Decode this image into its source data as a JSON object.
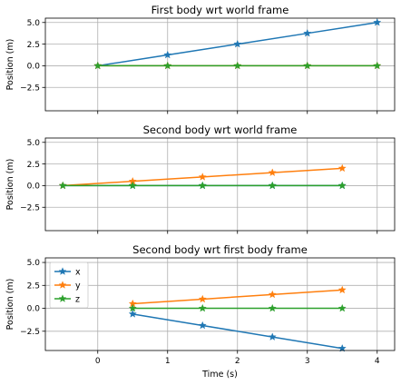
{
  "chart_data": [
    {
      "type": "line",
      "title": "First body wrt world frame",
      "ylabel": "Position (m)",
      "xlabel": "",
      "xlim": [
        -0.75,
        4.25
      ],
      "ylim": [
        -5.2,
        5.5
      ],
      "yticks": [
        5.0,
        2.5,
        0.0,
        -2.5
      ],
      "ytick_labels": [
        "5.0",
        "2.5",
        "0.0",
        "−2.5"
      ],
      "xticks": [
        0,
        1,
        2,
        3,
        4
      ],
      "xtick_labels": [
        "",
        "",
        "",
        "",
        ""
      ],
      "grid": true,
      "series": [
        {
          "key": "x",
          "color": "#1f77b4",
          "x": [
            0,
            1,
            2,
            3,
            4
          ],
          "values": [
            0.0,
            1.25,
            2.5,
            3.75,
            5.0
          ]
        },
        {
          "key": "y",
          "color": "#ff7f0e",
          "x": [
            0,
            1,
            2,
            3,
            4
          ],
          "values": [
            0.0,
            0.0,
            0.0,
            0.0,
            0.0
          ]
        },
        {
          "key": "z",
          "color": "#2ca02c",
          "x": [
            0,
            1,
            2,
            3,
            4
          ],
          "values": [
            0.0,
            0.0,
            0.0,
            0.0,
            0.0
          ]
        }
      ]
    },
    {
      "type": "line",
      "title": "Second body wrt world frame",
      "ylabel": "Position (m)",
      "xlabel": "",
      "xlim": [
        -0.75,
        4.25
      ],
      "ylim": [
        -5.2,
        5.5
      ],
      "yticks": [
        5.0,
        2.5,
        0.0,
        -2.5
      ],
      "ytick_labels": [
        "5.0",
        "2.5",
        "0.0",
        "−2.5"
      ],
      "xticks": [
        0,
        1,
        2,
        3,
        4
      ],
      "xtick_labels": [
        "",
        "",
        "",
        "",
        ""
      ],
      "grid": true,
      "series": [
        {
          "key": "x",
          "color": "#1f77b4",
          "x": [
            -0.5,
            0.5,
            1.5,
            2.5,
            3.5
          ],
          "values": [
            0.0,
            0.0,
            0.0,
            0.0,
            0.0
          ]
        },
        {
          "key": "y",
          "color": "#ff7f0e",
          "x": [
            -0.5,
            0.5,
            1.5,
            2.5,
            3.5
          ],
          "values": [
            0.0,
            0.5,
            1.0,
            1.5,
            2.0
          ]
        },
        {
          "key": "z",
          "color": "#2ca02c",
          "x": [
            -0.5,
            0.5,
            1.5,
            2.5,
            3.5
          ],
          "values": [
            0.0,
            0.0,
            0.0,
            0.0,
            0.0
          ]
        }
      ]
    },
    {
      "type": "line",
      "title": "Second body wrt first body frame",
      "ylabel": "Position (m)",
      "xlabel": "Time (s)",
      "xlim": [
        -0.75,
        4.25
      ],
      "ylim": [
        -4.6,
        5.5
      ],
      "yticks": [
        5.0,
        2.5,
        0.0,
        -2.5
      ],
      "ytick_labels": [
        "5.0",
        "2.5",
        "0.0",
        "−2.5"
      ],
      "xticks": [
        0,
        1,
        2,
        3,
        4
      ],
      "xtick_labels": [
        "0",
        "1",
        "2",
        "3",
        "4"
      ],
      "grid": true,
      "legend": {
        "placement": "upper-left",
        "entries": [
          "x",
          "y",
          "z"
        ]
      },
      "series": [
        {
          "name": "x",
          "key": "x",
          "color": "#1f77b4",
          "x": [
            0.5,
            1.5,
            2.5,
            3.5
          ],
          "values": [
            -0.625,
            -1.875,
            -3.125,
            -4.375
          ]
        },
        {
          "name": "y",
          "key": "y",
          "color": "#ff7f0e",
          "x": [
            0.5,
            1.5,
            2.5,
            3.5
          ],
          "values": [
            0.5,
            1.0,
            1.5,
            2.0
          ]
        },
        {
          "name": "z",
          "key": "z",
          "color": "#2ca02c",
          "x": [
            0.5,
            1.5,
            2.5,
            3.5
          ],
          "values": [
            0.0,
            0.0,
            0.0,
            0.0
          ]
        }
      ]
    }
  ]
}
